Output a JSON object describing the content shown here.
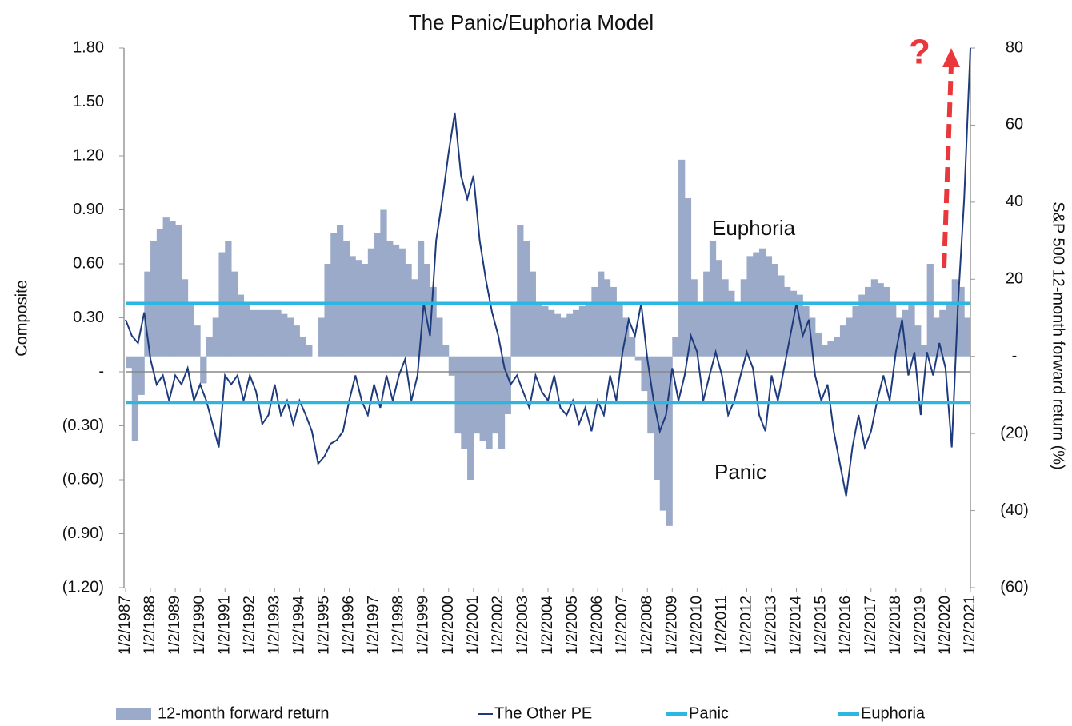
{
  "chart_data": {
    "type": "combo",
    "title": "The Panic/Euphoria Model",
    "ylabel": "Composite",
    "y2label": "S&P 500 12-month forward return (%)",
    "x": [
      1987,
      1987.25,
      1987.5,
      1987.75,
      1988,
      1988.25,
      1988.5,
      1988.75,
      1989,
      1989.25,
      1989.5,
      1989.75,
      1990,
      1990.25,
      1990.5,
      1990.75,
      1991,
      1991.25,
      1991.5,
      1991.75,
      1992,
      1992.25,
      1992.5,
      1992.75,
      1993,
      1993.25,
      1993.5,
      1993.75,
      1994,
      1994.25,
      1994.5,
      1994.75,
      1995,
      1995.25,
      1995.5,
      1995.75,
      1996,
      1996.25,
      1996.5,
      1996.75,
      1997,
      1997.25,
      1997.5,
      1997.75,
      1998,
      1998.25,
      1998.5,
      1998.75,
      1999,
      1999.25,
      1999.5,
      1999.75,
      2000,
      2000.25,
      2000.5,
      2000.75,
      2001,
      2001.25,
      2001.5,
      2001.75,
      2002,
      2002.25,
      2002.5,
      2002.75,
      2003,
      2003.25,
      2003.5,
      2003.75,
      2004,
      2004.25,
      2004.5,
      2004.75,
      2005,
      2005.25,
      2005.5,
      2005.75,
      2006,
      2006.25,
      2006.5,
      2006.75,
      2007,
      2007.25,
      2007.5,
      2007.75,
      2008,
      2008.25,
      2008.5,
      2008.75,
      2009,
      2009.25,
      2009.5,
      2009.75,
      2010,
      2010.25,
      2010.5,
      2010.75,
      2011,
      2011.25,
      2011.5,
      2011.75,
      2012,
      2012.25,
      2012.5,
      2012.75,
      2013,
      2013.25,
      2013.5,
      2013.75,
      2014,
      2014.25,
      2014.5,
      2014.75,
      2015,
      2015.25,
      2015.5,
      2015.75,
      2016,
      2016.25,
      2016.5,
      2016.75,
      2017,
      2017.25,
      2017.5,
      2017.75,
      2018,
      2018.25,
      2018.5,
      2018.75,
      2019,
      2019.25,
      2019.5,
      2019.75,
      2020,
      2020.25,
      2020.5,
      2020.75,
      2021
    ],
    "series": [
      {
        "name": "12-month forward return",
        "type": "bar",
        "axis": "y2",
        "color": "#9aaac8",
        "values": [
          -3,
          -22,
          -10,
          22,
          30,
          33,
          36,
          35,
          34,
          20,
          14,
          8,
          -7,
          5,
          10,
          27,
          30,
          22,
          16,
          14,
          12,
          12,
          12,
          12,
          12,
          11,
          10,
          8,
          5,
          3,
          0,
          10,
          24,
          32,
          34,
          30,
          26,
          25,
          24,
          28,
          32,
          38,
          30,
          29,
          28,
          24,
          20,
          30,
          24,
          18,
          10,
          3,
          -5,
          -20,
          -24,
          -32,
          -20,
          -22,
          -24,
          -20,
          -24,
          -15,
          14,
          34,
          30,
          22,
          14,
          13,
          12,
          11,
          10,
          11,
          12,
          13,
          14,
          18,
          22,
          20,
          18,
          14,
          10,
          5,
          -1,
          -9,
          -20,
          -32,
          -40,
          -44,
          5,
          51,
          41,
          20,
          14,
          22,
          30,
          25,
          20,
          17,
          14,
          20,
          26,
          27,
          28,
          26,
          24,
          21,
          18,
          17,
          16,
          13,
          10,
          6,
          3,
          4,
          5,
          8,
          10,
          13,
          16,
          18,
          20,
          19,
          18,
          14,
          10,
          12,
          14,
          8,
          3,
          24,
          10,
          12,
          14,
          20,
          18,
          10,
          null
        ]
      },
      {
        "name": "The Other PE",
        "type": "line",
        "color": "#1d3a7c",
        "values": [
          0.29,
          0.2,
          0.16,
          0.33,
          0.07,
          -0.07,
          -0.02,
          -0.16,
          -0.02,
          -0.07,
          0.02,
          -0.16,
          -0.07,
          -0.16,
          -0.29,
          -0.42,
          -0.02,
          -0.07,
          -0.02,
          -0.16,
          -0.02,
          -0.11,
          -0.29,
          -0.24,
          -0.07,
          -0.24,
          -0.16,
          -0.29,
          -0.16,
          -0.24,
          -0.33,
          -0.51,
          -0.47,
          -0.4,
          -0.38,
          -0.33,
          -0.16,
          -0.02,
          -0.16,
          -0.24,
          -0.07,
          -0.2,
          -0.02,
          -0.16,
          -0.02,
          0.07,
          -0.16,
          -0.02,
          0.38,
          0.2,
          0.73,
          0.96,
          1.22,
          1.44,
          1.09,
          0.96,
          1.09,
          0.73,
          0.51,
          0.33,
          0.2,
          0.02,
          -0.07,
          -0.02,
          -0.11,
          -0.2,
          -0.02,
          -0.11,
          -0.16,
          -0.02,
          -0.2,
          -0.24,
          -0.16,
          -0.29,
          -0.2,
          -0.33,
          -0.16,
          -0.24,
          -0.02,
          -0.16,
          0.11,
          0.29,
          0.2,
          0.38,
          0.07,
          -0.16,
          -0.33,
          -0.24,
          0.02,
          -0.16,
          -0.02,
          0.2,
          0.11,
          -0.16,
          -0.02,
          0.11,
          -0.02,
          -0.24,
          -0.16,
          -0.02,
          0.11,
          0.02,
          -0.24,
          -0.33,
          -0.02,
          -0.16,
          0.02,
          0.2,
          0.38,
          0.2,
          0.29,
          -0.02,
          -0.16,
          -0.07,
          -0.33,
          -0.51,
          -0.69,
          -0.42,
          -0.24,
          -0.42,
          -0.33,
          -0.16,
          -0.02,
          -0.16,
          0.11,
          0.29,
          -0.02,
          0.11,
          -0.24,
          0.11,
          -0.02,
          0.16,
          0.02,
          -0.42,
          0.38,
          0.96,
          1.8
        ]
      },
      {
        "name": "Panic",
        "type": "hline",
        "color": "#2cb6e2",
        "value": -0.17
      },
      {
        "name": "Euphoria",
        "type": "hline",
        "color": "#2cb6e2",
        "value": 0.38
      }
    ],
    "annotations": [
      {
        "text": "Euphoria"
      },
      {
        "text": "Panic"
      },
      {
        "text": "?"
      }
    ],
    "xlim": [
      1987,
      2021
    ],
    "xticks": [
      {
        "value": 1987,
        "label": "1/2/1987"
      },
      {
        "value": 1988,
        "label": "1/2/1988"
      },
      {
        "value": 1989,
        "label": "1/2/1989"
      },
      {
        "value": 1990,
        "label": "1/2/1990"
      },
      {
        "value": 1991,
        "label": "1/2/1991"
      },
      {
        "value": 1992,
        "label": "1/2/1992"
      },
      {
        "value": 1993,
        "label": "1/2/1993"
      },
      {
        "value": 1994,
        "label": "1/2/1994"
      },
      {
        "value": 1995,
        "label": "1/2/1995"
      },
      {
        "value": 1996,
        "label": "1/2/1996"
      },
      {
        "value": 1997,
        "label": "1/2/1997"
      },
      {
        "value": 1998,
        "label": "1/2/1998"
      },
      {
        "value": 1999,
        "label": "1/2/1999"
      },
      {
        "value": 2000,
        "label": "1/2/2000"
      },
      {
        "value": 2001,
        "label": "1/2/2001"
      },
      {
        "value": 2002,
        "label": "1/2/2002"
      },
      {
        "value": 2003,
        "label": "1/2/2003"
      },
      {
        "value": 2004,
        "label": "1/2/2004"
      },
      {
        "value": 2005,
        "label": "1/2/2005"
      },
      {
        "value": 2006,
        "label": "1/2/2006"
      },
      {
        "value": 2007,
        "label": "1/2/2007"
      },
      {
        "value": 2008,
        "label": "1/2/2008"
      },
      {
        "value": 2009,
        "label": "1/2/2009"
      },
      {
        "value": 2010,
        "label": "1/2/2010"
      },
      {
        "value": 2011,
        "label": "1/2/2011"
      },
      {
        "value": 2012,
        "label": "1/2/2012"
      },
      {
        "value": 2013,
        "label": "1/2/2013"
      },
      {
        "value": 2014,
        "label": "1/2/2014"
      },
      {
        "value": 2015,
        "label": "1/2/2015"
      },
      {
        "value": 2016,
        "label": "1/2/2016"
      },
      {
        "value": 2017,
        "label": "1/2/2017"
      },
      {
        "value": 2018,
        "label": "1/2/2018"
      },
      {
        "value": 2019,
        "label": "1/2/2019"
      },
      {
        "value": 2020,
        "label": "1/2/2020"
      },
      {
        "value": 2021,
        "label": "1/2/2021"
      }
    ],
    "ylim": [
      -1.2,
      1.8
    ],
    "yticks": [
      {
        "value": 1.8,
        "label": "1.80"
      },
      {
        "value": 1.5,
        "label": "1.50"
      },
      {
        "value": 1.2,
        "label": "1.20"
      },
      {
        "value": 0.9,
        "label": "0.90"
      },
      {
        "value": 0.6,
        "label": "0.60"
      },
      {
        "value": 0.3,
        "label": "0.30"
      },
      {
        "value": 0,
        "label": "-"
      },
      {
        "value": -0.3,
        "label": "(0.30)"
      },
      {
        "value": -0.6,
        "label": "(0.60)"
      },
      {
        "value": -0.9,
        "label": "(0.90)"
      },
      {
        "value": -1.2,
        "label": "(1.20)"
      }
    ],
    "y2lim": [
      -60,
      80
    ],
    "y2ticks": [
      80,
      60,
      40,
      20,
      {
        "value": 0,
        "label": "-"
      },
      {
        "value": -20,
        "label": "(20)"
      },
      {
        "value": -40,
        "label": "(40)"
      },
      {
        "value": -60,
        "label": "(60)"
      }
    ],
    "legend": "bottom"
  }
}
